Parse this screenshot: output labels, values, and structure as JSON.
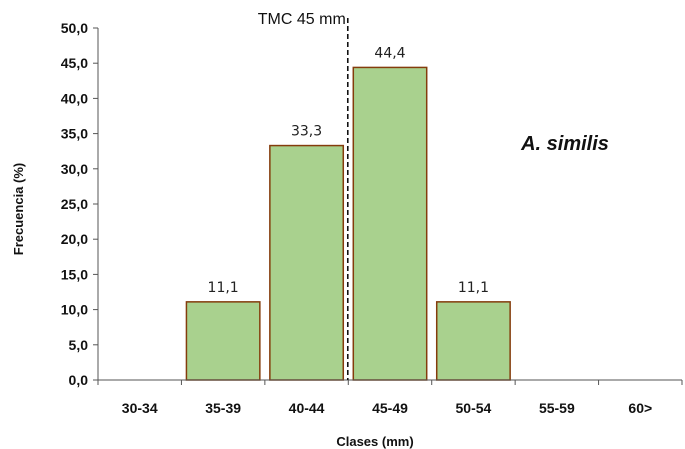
{
  "chart_data": {
    "type": "bar",
    "categories": [
      "30-34",
      "35-39",
      "40-44",
      "45-49",
      "50-54",
      "55-59",
      "60>"
    ],
    "values": [
      0,
      11.1,
      33.3,
      44.4,
      11.1,
      0,
      0
    ],
    "data_labels": [
      "",
      "11,1",
      "33,3",
      "44,4",
      "11,1",
      "",
      ""
    ],
    "xlabel": "Clases (mm)",
    "ylabel": "Frecuencia (%)",
    "ylim": [
      0,
      50
    ],
    "yticks": [
      "0,0",
      "5,0",
      "10,0",
      "15,0",
      "20,0",
      "25,0",
      "30,0",
      "35,0",
      "40,0",
      "45,0",
      "50,0"
    ],
    "grid": false,
    "reference_line": {
      "label": "TMC 45 mm",
      "x": 45,
      "style": "dashed"
    },
    "annotation": "A. similis",
    "bar_color": "#a9d18e",
    "bar_edge_color": "#843c0c"
  }
}
